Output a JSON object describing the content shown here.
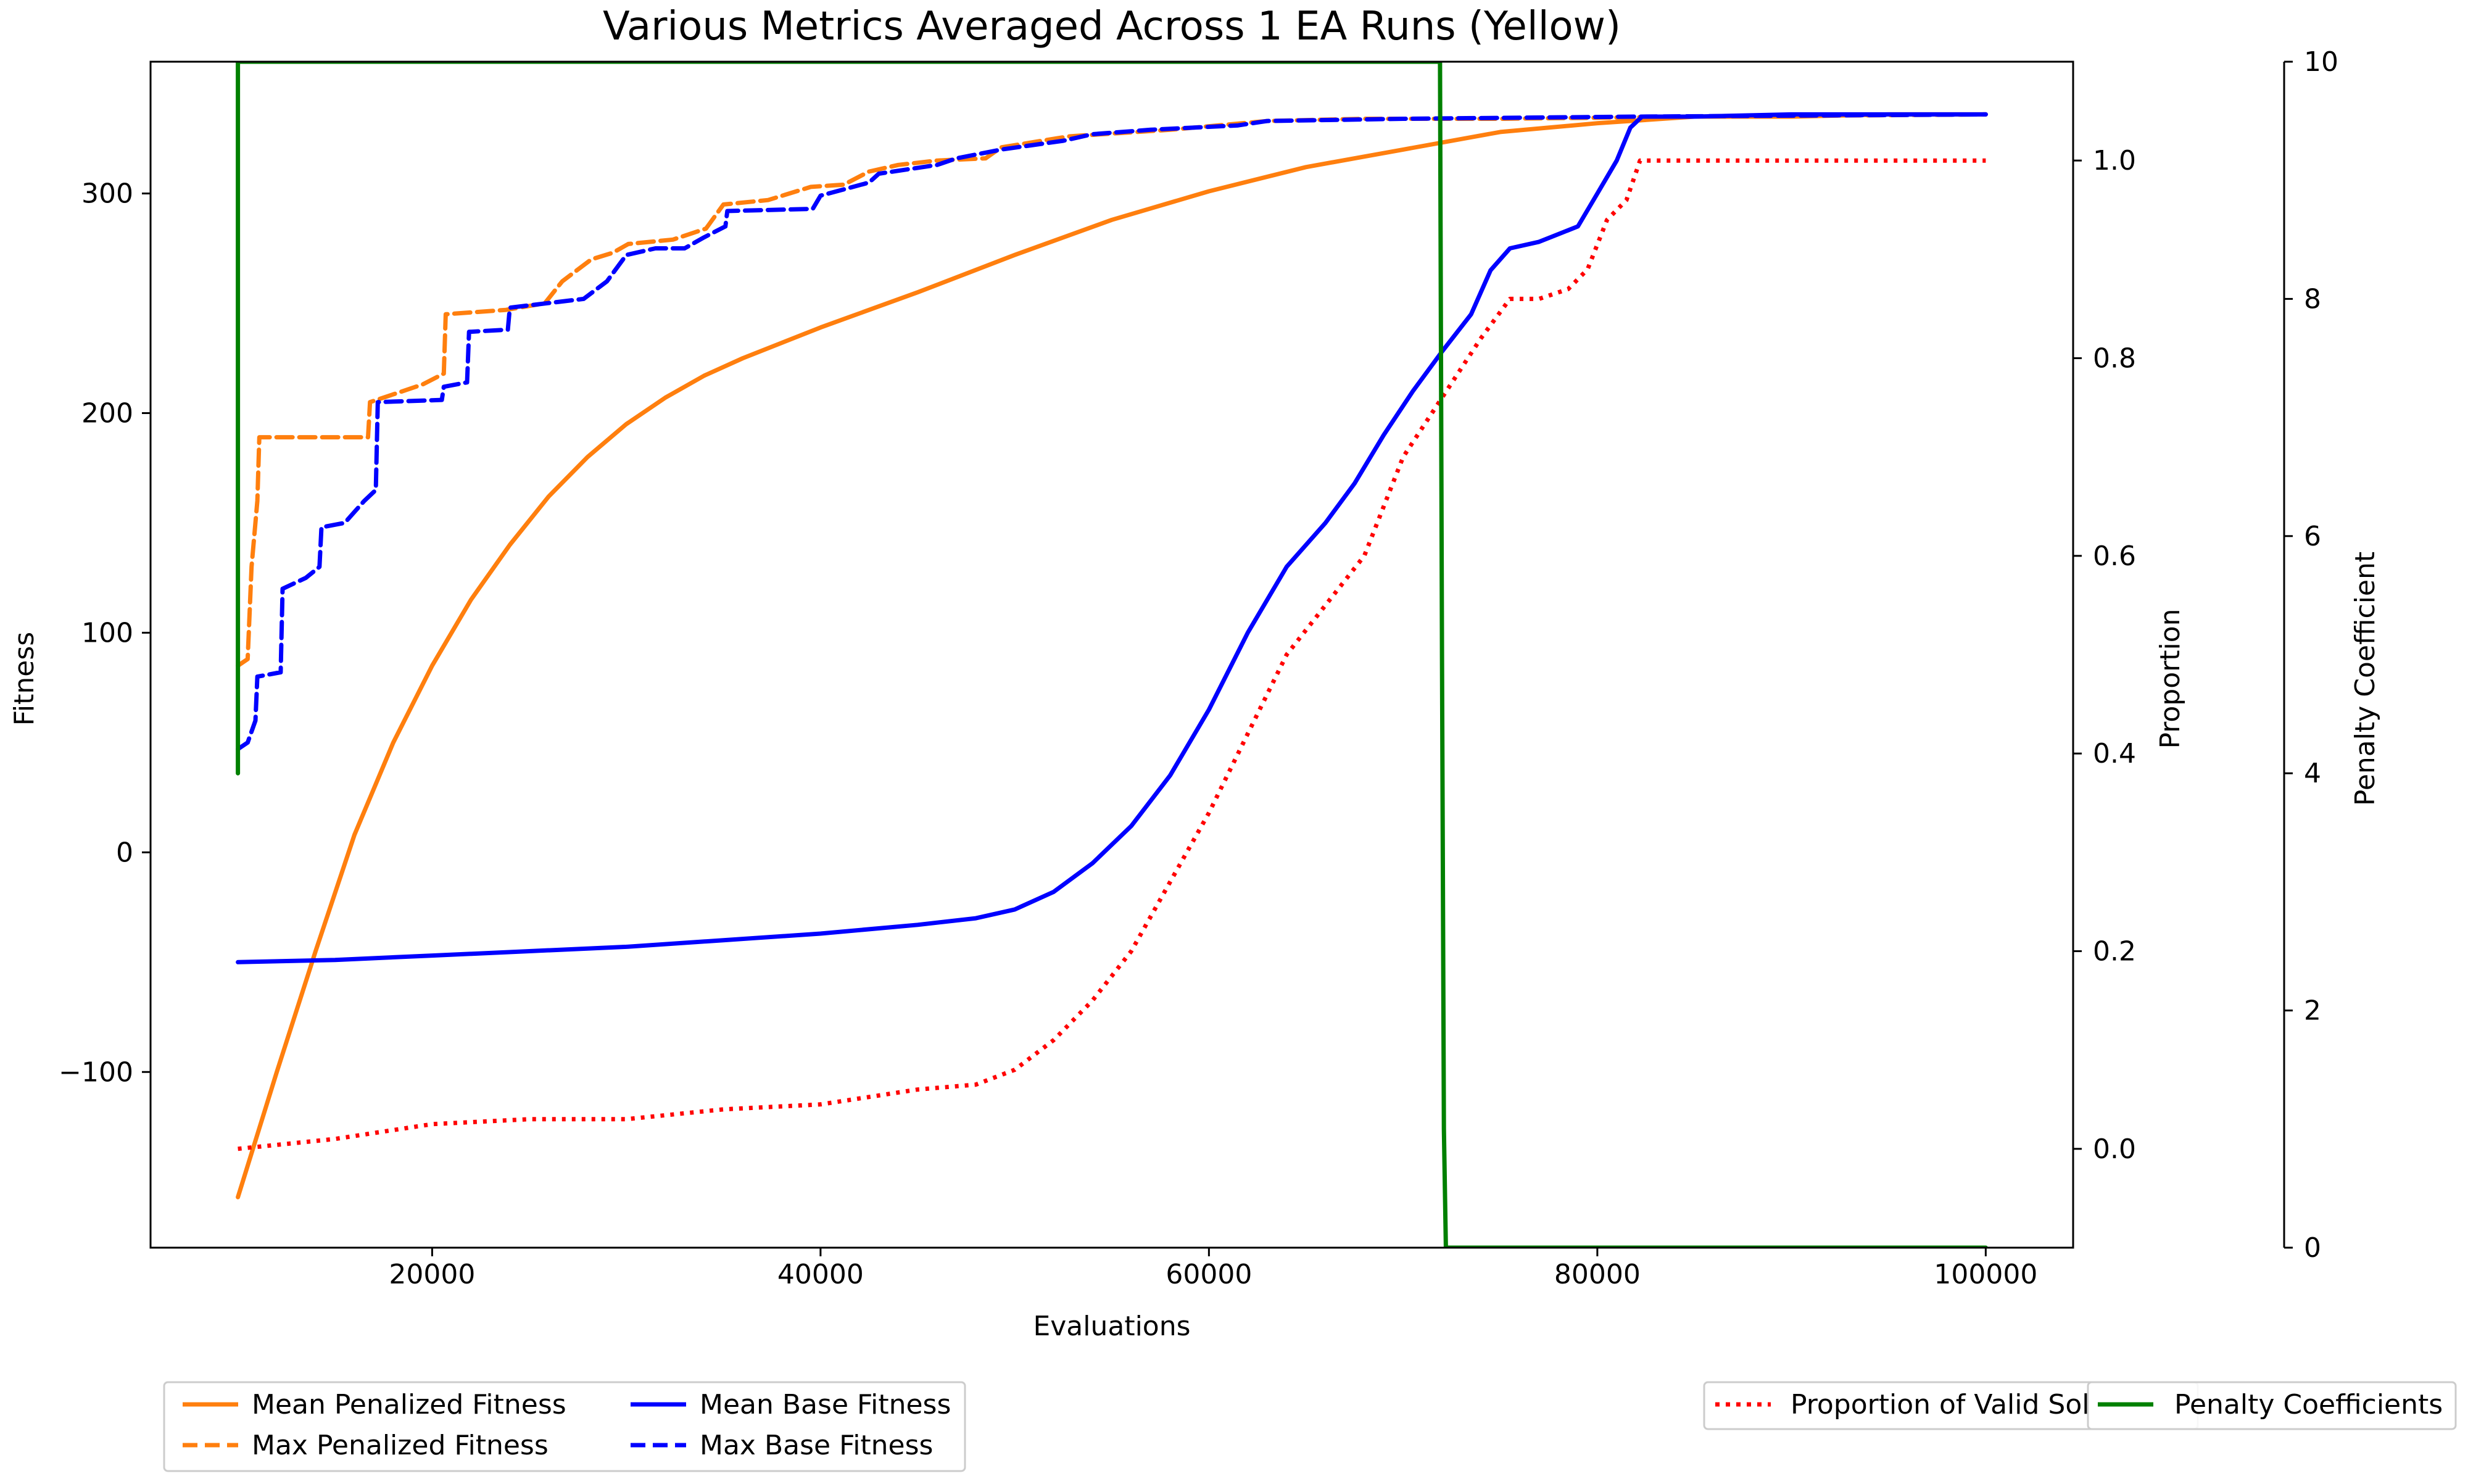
{
  "chart_data": {
    "type": "line",
    "title": "Various Metrics Averaged Across 1 EA Runs (Yellow)",
    "xlabel": "Evaluations",
    "xlim": [
      5500,
      104500
    ],
    "xticks": [
      20000,
      40000,
      60000,
      80000,
      100000
    ],
    "grid": false,
    "axes": {
      "fitness": {
        "label": "Fitness",
        "side": "left",
        "ylim": [
          -180,
          360
        ],
        "ticks": [
          -100,
          0,
          100,
          200,
          300
        ],
        "tick_labels": [
          "−100",
          "0",
          "100",
          "200",
          "300"
        ]
      },
      "proportion": {
        "label": "Proportion",
        "side": "right",
        "ylim": [
          -0.1,
          1.1
        ],
        "ticks": [
          0.0,
          0.2,
          0.4,
          0.6,
          0.8,
          1.0
        ],
        "tick_labels": [
          "0.0",
          "0.2",
          "0.4",
          "0.6",
          "0.8",
          "1.0"
        ]
      },
      "penalty": {
        "label": "Penalty Coefficient",
        "side": "right-outer",
        "ylim": [
          0,
          10
        ],
        "ticks": [
          0,
          2,
          4,
          6,
          8,
          10
        ],
        "tick_labels": [
          "0",
          "2",
          "4",
          "6",
          "8",
          "10"
        ]
      }
    },
    "series": [
      {
        "name": "Mean Penalized Fitness",
        "axis": "fitness",
        "color": "#ff7f0e",
        "style": "solid",
        "x": [
          10000,
          12000,
          14000,
          16000,
          18000,
          20000,
          22000,
          24000,
          26000,
          28000,
          30000,
          32000,
          34000,
          36000,
          38000,
          40000,
          45000,
          50000,
          55000,
          60000,
          65000,
          70000,
          75000,
          80000,
          85000,
          90000,
          95000,
          100000
        ],
        "values": [
          -157,
          -100,
          -45,
          8,
          50,
          85,
          115,
          140,
          162,
          180,
          195,
          207,
          217,
          225,
          232,
          239,
          255,
          272,
          288,
          301,
          312,
          320,
          328,
          332,
          335,
          335,
          336,
          336
        ]
      },
      {
        "name": "Max Penalized Fitness",
        "axis": "fitness",
        "color": "#ff7f0e",
        "style": "dashed",
        "x": [
          10000,
          10500,
          10700,
          11000,
          11100,
          16700,
          16800,
          19500,
          20600,
          20700,
          23800,
          25800,
          26700,
          28200,
          29300,
          30100,
          32400,
          34100,
          35000,
          37300,
          39500,
          41200,
          42500,
          44000,
          46000,
          48500,
          49300,
          52800,
          54500,
          58000,
          63000,
          68000,
          75000,
          85000,
          100000
        ],
        "values": [
          85,
          88,
          130,
          160,
          189,
          189,
          205,
          213,
          218,
          245,
          247,
          250,
          260,
          270,
          273,
          277,
          279,
          284,
          295,
          297,
          303,
          304,
          310,
          313,
          315,
          316,
          321,
          326,
          327,
          329,
          333,
          334,
          334,
          335,
          336
        ]
      },
      {
        "name": "Mean Base Fitness",
        "axis": "fitness",
        "color": "#0000ff",
        "style": "solid",
        "x": [
          10000,
          15000,
          20000,
          25000,
          30000,
          35000,
          40000,
          45000,
          48000,
          50000,
          52000,
          54000,
          56000,
          58000,
          60000,
          62000,
          64000,
          66000,
          67500,
          69000,
          70500,
          72000,
          73500,
          74500,
          75500,
          77000,
          79000,
          80000,
          81000,
          81700,
          82300,
          85000,
          90000,
          100000
        ],
        "values": [
          -50,
          -49,
          -47,
          -45,
          -43,
          -40,
          -37,
          -33,
          -30,
          -26,
          -18,
          -5,
          12,
          35,
          65,
          100,
          130,
          150,
          168,
          190,
          210,
          228,
          245,
          265,
          275,
          278,
          285,
          300,
          315,
          330,
          335,
          335,
          336,
          336
        ]
      },
      {
        "name": "Max Base Fitness",
        "axis": "fitness",
        "color": "#0000ff",
        "style": "dashed",
        "x": [
          10000,
          10500,
          10900,
          11000,
          12200,
          12300,
          13500,
          14200,
          14300,
          15500,
          16000,
          16500,
          17100,
          17200,
          20500,
          20600,
          21800,
          21900,
          23900,
          24000,
          27800,
          29000,
          30000,
          31500,
          33000,
          34000,
          35100,
          35200,
          39600,
          40000,
          42500,
          43000,
          46000,
          47000,
          49300,
          52500,
          54000,
          57000,
          61500,
          63000,
          70000,
          82000,
          100000
        ],
        "values": [
          47,
          50,
          60,
          80,
          82,
          120,
          125,
          130,
          148,
          150,
          155,
          160,
          165,
          205,
          206,
          212,
          214,
          237,
          238,
          248,
          252,
          260,
          272,
          275,
          275,
          280,
          285,
          292,
          293,
          299,
          305,
          309,
          313,
          316,
          320,
          324,
          327,
          329,
          331,
          333,
          334,
          335,
          336
        ]
      },
      {
        "name": "Proportion of Valid Solutions",
        "axis": "proportion",
        "color": "#ff0000",
        "style": "dotted",
        "x": [
          10000,
          15000,
          20000,
          25000,
          30000,
          35000,
          40000,
          45000,
          48000,
          50000,
          52000,
          54000,
          56000,
          58000,
          60000,
          62000,
          64000,
          66000,
          68000,
          70000,
          72000,
          74000,
          75500,
          77000,
          78500,
          79500,
          80500,
          81500,
          82200,
          83000,
          90000,
          100000
        ],
        "values": [
          0.0,
          0.01,
          0.025,
          0.03,
          0.03,
          0.04,
          0.045,
          0.06,
          0.065,
          0.08,
          0.11,
          0.15,
          0.2,
          0.27,
          0.34,
          0.42,
          0.5,
          0.55,
          0.6,
          0.7,
          0.76,
          0.82,
          0.86,
          0.86,
          0.87,
          0.89,
          0.94,
          0.96,
          1.0,
          1.0,
          1.0,
          1.0
        ]
      },
      {
        "name": "Penalty Coefficients",
        "axis": "penalty",
        "color": "#008000",
        "style": "solid",
        "x": [
          10000,
          10000,
          10050,
          71900,
          72000,
          72100,
          72200,
          100000
        ],
        "values": [
          4.0,
          10,
          10,
          10,
          5.0,
          1.0,
          0.0,
          0.0
        ]
      }
    ],
    "legend": {
      "left": {
        "placement": "bottom-left",
        "columns": 2,
        "entries": [
          "Mean Penalized Fitness",
          "Max Penalized Fitness",
          "Mean Base Fitness",
          "Max Base Fitness"
        ]
      },
      "proportion": {
        "placement": "bottom-right",
        "entries": [
          "Proportion of Valid Solutions"
        ],
        "visible_text": "Proportion of Valid So"
      },
      "penalty": {
        "placement": "bottom-right",
        "entries": [
          "Penalty Coefficients"
        ]
      }
    }
  }
}
